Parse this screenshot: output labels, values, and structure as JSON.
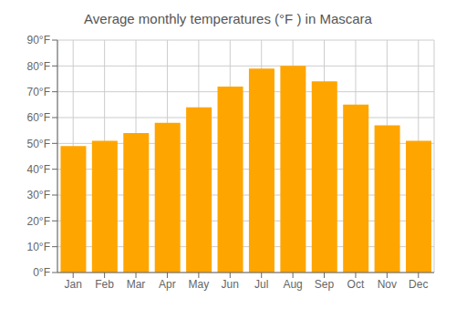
{
  "chart_data": {
    "type": "bar",
    "title": "Average monthly temperatures (°F ) in Mascara",
    "categories": [
      "Jan",
      "Feb",
      "Mar",
      "Apr",
      "May",
      "Jun",
      "Jul",
      "Aug",
      "Sep",
      "Oct",
      "Nov",
      "Dec"
    ],
    "values": [
      49,
      51,
      54,
      58,
      64,
      72,
      79,
      80,
      74,
      65,
      57,
      51
    ],
    "color": "#FFA500",
    "ylim": [
      0,
      90
    ],
    "yticks": [
      {
        "value": 0,
        "label": "0°F"
      },
      {
        "value": 10,
        "label": "10°F"
      },
      {
        "value": 20,
        "label": "20°F"
      },
      {
        "value": 30,
        "label": "30°F"
      },
      {
        "value": 40,
        "label": "40°F"
      },
      {
        "value": 50,
        "label": "50°F"
      },
      {
        "value": 60,
        "label": "60°F"
      },
      {
        "value": 70,
        "label": "70°F"
      },
      {
        "value": 80,
        "label": "80°F"
      },
      {
        "value": 90,
        "label": "90°F"
      }
    ],
    "grid": true
  }
}
